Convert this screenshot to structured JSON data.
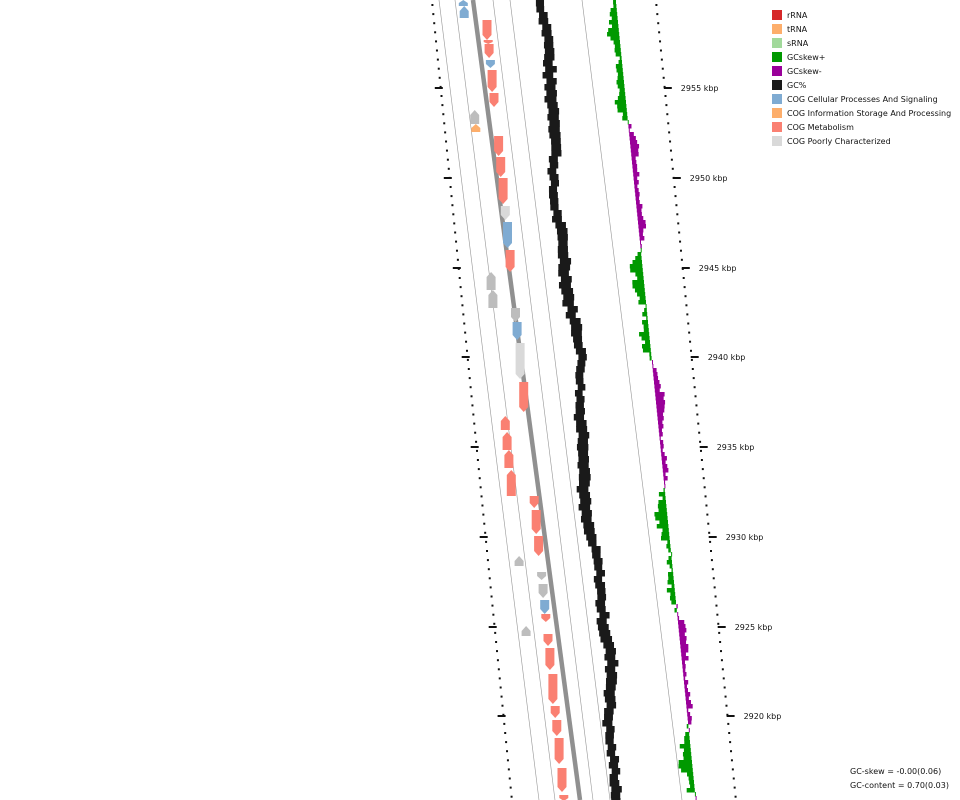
{
  "legend": [
    {
      "label": "rRNA",
      "color": "#d62728"
    },
    {
      "label": "tRNA",
      "color": "#fdae6b"
    },
    {
      "label": "sRNA",
      "color": "#a1d99b"
    },
    {
      "label": "GCskew+",
      "color": "#009900"
    },
    {
      "label": "GCskew-",
      "color": "#990099"
    },
    {
      "label": "GC%",
      "color": "#1a1a1a"
    },
    {
      "label": "COG Cellular Processes And Signaling",
      "color": "#7fabd2"
    },
    {
      "label": "COG Information Storage And Processing",
      "color": "#fdae6b"
    },
    {
      "label": "COG Metabolism",
      "color": "#fa8072"
    },
    {
      "label": "COG Poorly Characterized",
      "color": "#d9d9d9"
    }
  ],
  "position_labels": [
    "2955 kbp",
    "2950 kbp",
    "2945 kbp",
    "2940 kbp",
    "2935 kbp",
    "2930 kbp",
    "2925 kbp",
    "2920 kbp"
  ],
  "stats": {
    "gc_skew": "GC-skew = -0.00(0.06)",
    "gc_content": "GC-content = 0.70(0.03)"
  },
  "colors": {
    "metabolism": "#fa8072",
    "cellular": "#7fabd2",
    "info": "#fdae6b",
    "poor": "#d9d9d9",
    "other": "#bdbdbd",
    "gc": "#1a1a1a",
    "skew_pos": "#009900",
    "skew_neg": "#990099"
  }
}
